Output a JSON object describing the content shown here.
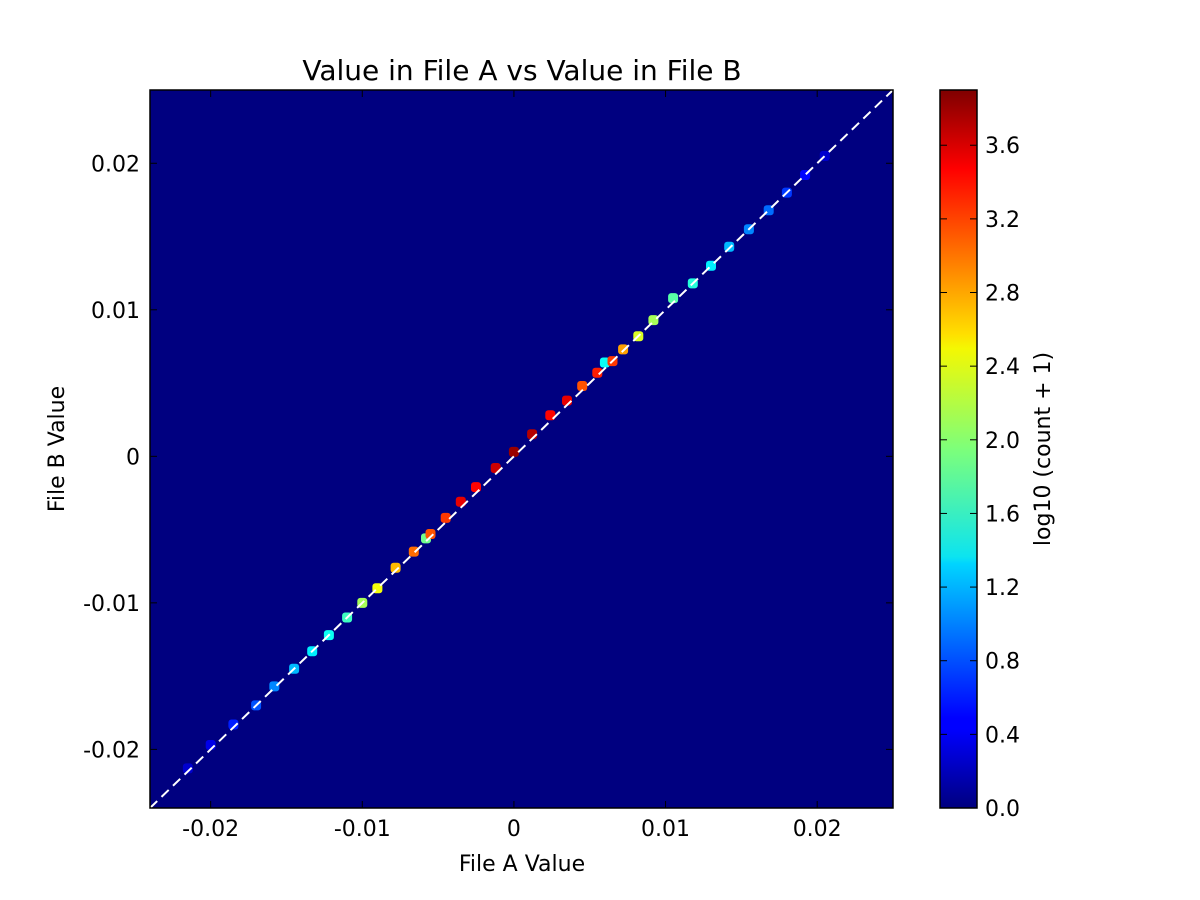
{
  "chart_data": {
    "type": "heatmap",
    "title": "Value in File A vs Value in File B",
    "xlabel": "File A Value",
    "ylabel": "File B Value",
    "xlim": [
      -0.024,
      0.025
    ],
    "ylim": [
      -0.024,
      0.025
    ],
    "x_ticks": [
      {
        "value": -0.02,
        "label": "-0.02"
      },
      {
        "value": -0.01,
        "label": "-0.01"
      },
      {
        "value": 0,
        "label": "0"
      },
      {
        "value": 0.01,
        "label": "0.01"
      },
      {
        "value": 0.02,
        "label": "0.02"
      }
    ],
    "y_ticks": [
      {
        "value": -0.02,
        "label": "-0.02"
      },
      {
        "value": -0.01,
        "label": "-0.01"
      },
      {
        "value": 0,
        "label": "0"
      },
      {
        "value": 0.01,
        "label": "0.01"
      },
      {
        "value": 0.02,
        "label": "0.02"
      }
    ],
    "colorbar": {
      "label": "log10 (count + 1)",
      "range": [
        0,
        3.9
      ],
      "colormap": "jet",
      "ticks": [
        {
          "value": 0.0,
          "label": "0.0"
        },
        {
          "value": 0.4,
          "label": "0.4"
        },
        {
          "value": 0.8,
          "label": "0.8"
        },
        {
          "value": 1.2,
          "label": "1.2"
        },
        {
          "value": 1.6,
          "label": "1.6"
        },
        {
          "value": 2.0,
          "label": "2.0"
        },
        {
          "value": 2.4,
          "label": "2.4"
        },
        {
          "value": 2.8,
          "label": "2.8"
        },
        {
          "value": 3.2,
          "label": "3.2"
        },
        {
          "value": 3.6,
          "label": "3.6"
        }
      ]
    },
    "background_color": "#000080",
    "reference_line": {
      "style": "dashed",
      "color": "#ffffff",
      "from": [
        -0.024,
        -0.024
      ],
      "to": [
        0.025,
        0.025
      ]
    },
    "cells": [
      {
        "x": -0.0215,
        "y": -0.0213,
        "v": 0.3
      },
      {
        "x": -0.02,
        "y": -0.0197,
        "v": 0.4
      },
      {
        "x": -0.0185,
        "y": -0.0183,
        "v": 0.6
      },
      {
        "x": -0.017,
        "y": -0.017,
        "v": 0.8
      },
      {
        "x": -0.0158,
        "y": -0.0157,
        "v": 1.0
      },
      {
        "x": -0.0145,
        "y": -0.0145,
        "v": 1.2
      },
      {
        "x": -0.0133,
        "y": -0.0133,
        "v": 1.4
      },
      {
        "x": -0.0122,
        "y": -0.0122,
        "v": 1.5
      },
      {
        "x": -0.011,
        "y": -0.011,
        "v": 1.7
      },
      {
        "x": -0.01,
        "y": -0.01,
        "v": 2.1
      },
      {
        "x": -0.009,
        "y": -0.009,
        "v": 2.4
      },
      {
        "x": -0.0078,
        "y": -0.0076,
        "v": 2.7
      },
      {
        "x": -0.0066,
        "y": -0.0065,
        "v": 3.0
      },
      {
        "x": -0.0058,
        "y": -0.0056,
        "v": 1.9
      },
      {
        "x": -0.0055,
        "y": -0.0053,
        "v": 3.1
      },
      {
        "x": -0.0045,
        "y": -0.0042,
        "v": 3.2
      },
      {
        "x": -0.0035,
        "y": -0.0031,
        "v": 3.5
      },
      {
        "x": -0.0025,
        "y": -0.0021,
        "v": 3.4
      },
      {
        "x": -0.0012,
        "y": -0.0008,
        "v": 3.6
      },
      {
        "x": 0.0,
        "y": 0.0003,
        "v": 3.8
      },
      {
        "x": 0.0012,
        "y": 0.0015,
        "v": 3.7
      },
      {
        "x": 0.0024,
        "y": 0.0028,
        "v": 3.4
      },
      {
        "x": 0.0035,
        "y": 0.0038,
        "v": 3.5
      },
      {
        "x": 0.0045,
        "y": 0.0048,
        "v": 3.1
      },
      {
        "x": 0.0055,
        "y": 0.0057,
        "v": 3.3
      },
      {
        "x": 0.006,
        "y": 0.0064,
        "v": 1.5
      },
      {
        "x": 0.0065,
        "y": 0.0065,
        "v": 3.2
      },
      {
        "x": 0.0072,
        "y": 0.0073,
        "v": 2.8
      },
      {
        "x": 0.0082,
        "y": 0.0082,
        "v": 2.3
      },
      {
        "x": 0.0092,
        "y": 0.0093,
        "v": 2.1
      },
      {
        "x": 0.0105,
        "y": 0.0108,
        "v": 1.8
      },
      {
        "x": 0.0118,
        "y": 0.0118,
        "v": 1.6
      },
      {
        "x": 0.013,
        "y": 0.013,
        "v": 1.4
      },
      {
        "x": 0.0142,
        "y": 0.0143,
        "v": 1.2
      },
      {
        "x": 0.0155,
        "y": 0.0155,
        "v": 1.0
      },
      {
        "x": 0.0168,
        "y": 0.0168,
        "v": 0.9
      },
      {
        "x": 0.018,
        "y": 0.018,
        "v": 0.7
      },
      {
        "x": 0.0192,
        "y": 0.0192,
        "v": 0.5
      },
      {
        "x": 0.0205,
        "y": 0.0205,
        "v": 0.3
      }
    ]
  }
}
